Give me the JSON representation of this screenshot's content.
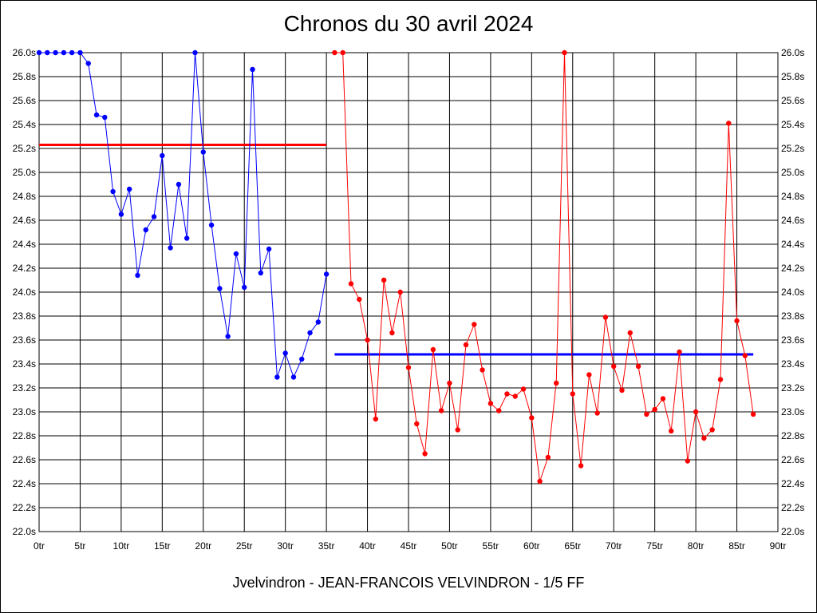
{
  "chart_data": {
    "type": "line",
    "title": "Chronos du 30 avril 2024",
    "footer": "Jvelvindron - JEAN-FRANCOIS VELVINDRON - 1/5 FF",
    "xlim": [
      0,
      90
    ],
    "ylim": [
      22.0,
      26.0
    ],
    "x_ticks": [
      0,
      5,
      10,
      15,
      20,
      25,
      30,
      35,
      40,
      45,
      50,
      55,
      60,
      65,
      70,
      75,
      80,
      85,
      90
    ],
    "x_tick_labels": [
      "0tr",
      "5tr",
      "10tr",
      "15tr",
      "20tr",
      "25tr",
      "30tr",
      "35tr",
      "40tr",
      "45tr",
      "50tr",
      "55tr",
      "60tr",
      "65tr",
      "70tr",
      "75tr",
      "80tr",
      "85tr",
      "90tr"
    ],
    "y_ticks": [
      22.0,
      22.2,
      22.4,
      22.6,
      22.8,
      23.0,
      23.2,
      23.4,
      23.6,
      23.8,
      24.0,
      24.2,
      24.4,
      24.6,
      24.8,
      25.0,
      25.2,
      25.4,
      25.6,
      25.8,
      26.0
    ],
    "y_tick_labels": [
      "22.0s",
      "22.2s",
      "22.4s",
      "22.6s",
      "22.8s",
      "23.0s",
      "23.2s",
      "23.4s",
      "23.6s",
      "23.8s",
      "24.0s",
      "24.2s",
      "24.4s",
      "24.6s",
      "24.8s",
      "25.0s",
      "25.2s",
      "25.4s",
      "25.6s",
      "25.8s",
      "26.0s"
    ],
    "grid": true,
    "series": [
      {
        "color": "#0000ff",
        "x": [
          0,
          1,
          2,
          3,
          4,
          5,
          6,
          7,
          8,
          9,
          10,
          11,
          12,
          13,
          14,
          15,
          16,
          17,
          18,
          19,
          20,
          21,
          22,
          23,
          24,
          25,
          26,
          27,
          28,
          29,
          30,
          31,
          32,
          33,
          34,
          35
        ],
        "y": [
          26.0,
          26.0,
          26.0,
          26.0,
          26.0,
          26.0,
          25.91,
          25.48,
          25.46,
          24.84,
          24.65,
          24.86,
          24.14,
          24.52,
          24.63,
          25.14,
          24.37,
          24.9,
          24.45,
          26.0,
          25.17,
          24.56,
          24.03,
          23.63,
          24.32,
          24.04,
          25.86,
          24.16,
          24.36,
          23.29,
          23.49,
          23.29,
          23.44,
          23.66,
          23.75,
          24.15
        ]
      },
      {
        "color": "#ff0000",
        "x": [
          36,
          37,
          38,
          39,
          40,
          41,
          42,
          43,
          44,
          45,
          46,
          47,
          48,
          49,
          50,
          51,
          52,
          53,
          54,
          55,
          56,
          57,
          58,
          59,
          60,
          61,
          62,
          63,
          64,
          65,
          66,
          67,
          68,
          69,
          70,
          71,
          72,
          73,
          74,
          75,
          76,
          77,
          78,
          79,
          80,
          81,
          82,
          83,
          84,
          85,
          86,
          87
        ],
        "y": [
          26.0,
          26.0,
          24.07,
          23.94,
          23.6,
          22.94,
          24.1,
          23.66,
          24.0,
          23.37,
          22.9,
          22.65,
          23.52,
          23.01,
          23.24,
          22.85,
          23.56,
          23.73,
          23.35,
          23.07,
          23.01,
          23.15,
          23.13,
          23.19,
          22.95,
          22.42,
          22.62,
          23.24,
          26.0,
          23.15,
          22.55,
          23.31,
          22.99,
          23.79,
          23.38,
          23.18,
          23.66,
          23.38,
          22.98,
          23.02,
          23.11,
          22.84,
          23.5,
          22.59,
          23.0,
          22.78,
          22.85,
          23.27,
          25.41,
          23.76,
          23.47,
          22.98
        ]
      }
    ],
    "reference_lines": [
      {
        "color": "#ff0000",
        "x": [
          0,
          35
        ],
        "y": 25.23
      },
      {
        "color": "#0000ff",
        "x": [
          36,
          87
        ],
        "y": 23.48
      }
    ]
  }
}
